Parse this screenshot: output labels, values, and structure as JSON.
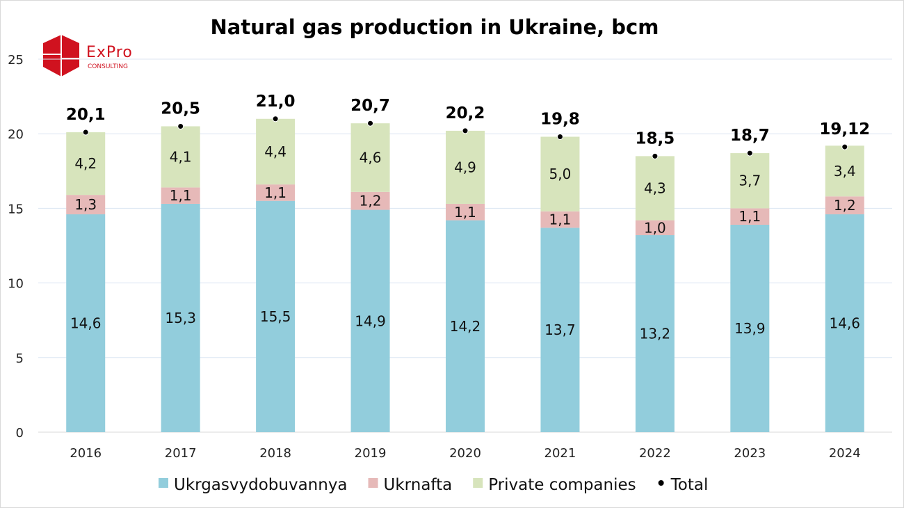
{
  "chart_data": {
    "type": "bar",
    "stacked": true,
    "title": "Natural gas production in Ukraine, bcm",
    "categories": [
      "2016",
      "2017",
      "2018",
      "2019",
      "2020",
      "2021",
      "2022",
      "2023",
      "2024"
    ],
    "series": [
      {
        "name": "Ukrgasvydobuvannya",
        "color": "#92CDDC",
        "values": [
          14.6,
          15.3,
          15.5,
          14.9,
          14.2,
          13.7,
          13.2,
          13.9,
          14.6
        ],
        "labels": [
          "14,6",
          "15,3",
          "15,5",
          "14,9",
          "14,2",
          "13,7",
          "13,2",
          "13,9",
          "14,6"
        ]
      },
      {
        "name": "Ukrnafta",
        "color": "#E6B9B8",
        "values": [
          1.3,
          1.1,
          1.1,
          1.2,
          1.1,
          1.1,
          1.0,
          1.1,
          1.2
        ],
        "labels": [
          "1,3",
          "1,1",
          "1,1",
          "1,2",
          "1,1",
          "1,1",
          "1,0",
          "1,1",
          "1,2"
        ]
      },
      {
        "name": "Private companies",
        "color": "#D7E4BC",
        "values": [
          4.2,
          4.1,
          4.4,
          4.6,
          4.9,
          5.0,
          4.3,
          3.7,
          3.4
        ],
        "labels": [
          "4,2",
          "4,1",
          "4,4",
          "4,6",
          "4,9",
          "5,0",
          "4,3",
          "3,7",
          "3,4"
        ]
      }
    ],
    "total": {
      "name": "Total",
      "type": "scatter",
      "values": [
        20.1,
        20.5,
        21.0,
        20.7,
        20.2,
        19.8,
        18.5,
        18.7,
        19.12
      ],
      "labels": [
        "20,1",
        "20,5",
        "21,0",
        "20,7",
        "20,2",
        "19,8",
        "18,5",
        "18,7",
        "19,12"
      ]
    },
    "ylim": [
      0,
      25
    ],
    "yticks": [
      "0",
      "5",
      "10",
      "15",
      "20",
      "25"
    ],
    "grid": true,
    "legend": "bottom"
  },
  "logo": {
    "name": "ExPro",
    "subtitle": "CONSULTING",
    "color": "#D0121F"
  }
}
